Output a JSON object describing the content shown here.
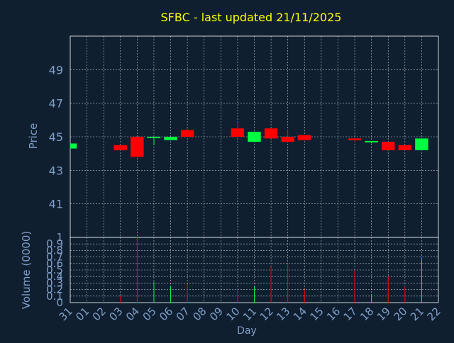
{
  "chart_data": [
    {
      "type": "candlestick",
      "title": "SFBC - last updated 21/11/2025",
      "xlabel": "",
      "ylabel": "Price",
      "ylim": [
        39,
        51
      ],
      "y_ticks": [
        41,
        43,
        45,
        47,
        49
      ],
      "grid": true,
      "x_tick_labels": [
        "31",
        "01",
        "02",
        "03",
        "04",
        "05",
        "06",
        "07",
        "08",
        "09",
        "10",
        "11",
        "12",
        "13",
        "14",
        "15",
        "16",
        "17",
        "18",
        "19",
        "20",
        "21",
        "22"
      ],
      "colors": {
        "up": "#00ff40",
        "down": "#ff0000",
        "title": "#ffff00",
        "axis_text": "#7f9fc8",
        "background": "#0f1f30"
      },
      "candles": [
        {
          "day": "31",
          "open": 44.3,
          "close": 44.6,
          "high": 44.6,
          "low": 44.3
        },
        {
          "day": "03",
          "open": 44.5,
          "close": 44.2,
          "high": 44.5,
          "low": 44.2
        },
        {
          "day": "04",
          "open": 45.0,
          "close": 43.8,
          "high": 45.0,
          "low": 43.8
        },
        {
          "day": "05",
          "open": 44.95,
          "close": 45.0,
          "high": 45.0,
          "low": 44.5
        },
        {
          "day": "06",
          "open": 44.8,
          "close": 45.0,
          "high": 45.0,
          "low": 44.8
        },
        {
          "day": "07",
          "open": 45.4,
          "close": 45.0,
          "high": 45.5,
          "low": 45.0
        },
        {
          "day": "10",
          "open": 45.5,
          "close": 45.0,
          "high": 45.9,
          "low": 45.0
        },
        {
          "day": "11",
          "open": 44.7,
          "close": 45.3,
          "high": 45.3,
          "low": 44.7
        },
        {
          "day": "12",
          "open": 45.5,
          "close": 44.9,
          "high": 45.5,
          "low": 44.9
        },
        {
          "day": "13",
          "open": 45.0,
          "close": 44.7,
          "high": 45.4,
          "low": 44.7
        },
        {
          "day": "14",
          "open": 45.1,
          "close": 44.8,
          "high": 45.1,
          "low": 44.8
        },
        {
          "day": "17",
          "open": 44.9,
          "close": 44.8,
          "high": 44.9,
          "low": 44.7
        },
        {
          "day": "18",
          "open": 44.7,
          "close": 44.75,
          "high": 44.75,
          "low": 44.6
        },
        {
          "day": "19",
          "open": 44.7,
          "close": 44.2,
          "high": 44.7,
          "low": 44.2
        },
        {
          "day": "20",
          "open": 44.5,
          "close": 44.2,
          "high": 44.5,
          "low": 44.2
        },
        {
          "day": "21",
          "open": 44.2,
          "close": 44.9,
          "high": 44.9,
          "low": 44.2
        }
      ]
    },
    {
      "type": "bar",
      "title": "",
      "xlabel": "Day",
      "ylabel": "Volume (0000)",
      "ylim": [
        0,
        1
      ],
      "y_tick_labels": [
        "0",
        "0.1",
        "0.2",
        "0.3",
        "0.4",
        "0.5",
        "0.6",
        "0.7",
        "0.8",
        "0.9",
        "1"
      ],
      "grid": true,
      "categories": [
        "31",
        "01",
        "02",
        "03",
        "04",
        "05",
        "06",
        "07",
        "08",
        "09",
        "10",
        "11",
        "12",
        "13",
        "14",
        "15",
        "16",
        "17",
        "18",
        "19",
        "20",
        "21",
        "22"
      ],
      "series": [
        {
          "values": [
            0,
            0,
            0,
            0.1,
            1.0,
            0.32,
            0.25,
            0.29,
            0,
            0,
            0.22,
            0.25,
            0.55,
            0.6,
            0.2,
            0,
            0,
            0.5,
            0.12,
            0.4,
            0.25,
            0.67,
            0
          ],
          "directions": [
            "up",
            "",
            "",
            "down",
            "down",
            "up",
            "up",
            "down",
            "",
            "",
            "down",
            "up",
            "down",
            "down",
            "down",
            "",
            "",
            "down",
            "up",
            "down",
            "down",
            "up",
            ""
          ]
        }
      ]
    }
  ]
}
